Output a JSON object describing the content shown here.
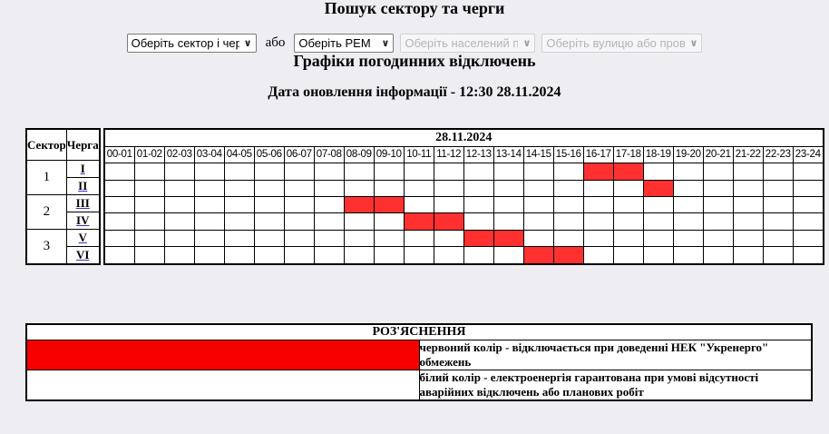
{
  "header": {
    "search_title": "Пошук сектору та черги",
    "or_label": "або",
    "selects": [
      {
        "value": "Оберіть сектор і чергу",
        "disabled": false
      },
      {
        "value": "Оберіть РЕМ",
        "disabled": false
      },
      {
        "value": "Оберіть населений пункт",
        "disabled": true
      },
      {
        "value": "Оберіть вулицю або провулок",
        "disabled": true
      }
    ],
    "schedule_title": "Графіки погодинних відключень",
    "update_info": "Дата оновлення інформації - 12:30 28.11.2024"
  },
  "schedule": {
    "date": "28.11.2024",
    "col_sector": "Сектор",
    "col_queue": "Черга",
    "off_color": "#ff3030",
    "hours": [
      "00-01",
      "01-02",
      "02-03",
      "03-04",
      "04-05",
      "05-06",
      "06-07",
      "07-08",
      "08-09",
      "09-10",
      "10-11",
      "11-12",
      "12-13",
      "13-14",
      "14-15",
      "15-16",
      "16-17",
      "17-18",
      "18-19",
      "19-20",
      "20-21",
      "21-22",
      "22-23",
      "23-24"
    ],
    "sectors": [
      {
        "name": "1",
        "queues": [
          {
            "name": "I",
            "off": [
              "16-17",
              "17-18"
            ]
          },
          {
            "name": "II",
            "off": [
              "18-19"
            ]
          }
        ]
      },
      {
        "name": "2",
        "queues": [
          {
            "name": "III",
            "off": [
              "08-09",
              "09-10"
            ]
          },
          {
            "name": "IV",
            "off": [
              "10-11",
              "11-12"
            ]
          }
        ]
      },
      {
        "name": "3",
        "queues": [
          {
            "name": "V",
            "off": [
              "12-13",
              "13-14"
            ]
          },
          {
            "name": "VI",
            "off": [
              "14-15",
              "15-16"
            ]
          }
        ]
      }
    ]
  },
  "legend": {
    "title": "РОЗ'ЯСНЕННЯ",
    "rows": [
      {
        "color": "#f60000",
        "text": "червоний колір - відключається при доведенні НЕК \"Укренерго\" обмежень"
      },
      {
        "color": "#ffffff",
        "text": "білий колір - електроенергія гарантована при умові відсутності аварійних відключень або планових робіт"
      }
    ]
  }
}
